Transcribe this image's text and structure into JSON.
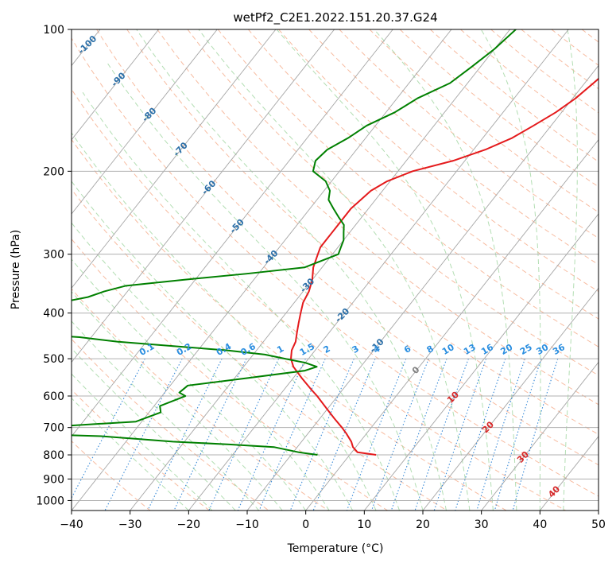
{
  "chart_data": {
    "type": "line",
    "subtype": "skew-t log-p diagram",
    "title": "wetPf2_C2E1.2022.151.20.37.G24",
    "xlabel": "Temperature (°C)",
    "ylabel": "Pressure (hPa)",
    "xlim": [
      -40,
      50
    ],
    "ylim": [
      1050,
      100
    ],
    "y_scale": "log",
    "grid": true,
    "x_ticks": [
      -40,
      -30,
      -20,
      -10,
      0,
      10,
      20,
      30,
      40,
      50
    ],
    "y_ticks": [
      100,
      200,
      300,
      400,
      500,
      600,
      700,
      800,
      900,
      1000
    ],
    "background_lines": {
      "isotherms_color": "#a6a6a6",
      "dry_adiabats_color": "#f4a582",
      "moist_adiabats_color": "#a6d8a6",
      "mixing_ratio_color": "#1f77b4",
      "dry_adiabat_labels": [
        "-100",
        "-90",
        "-80",
        "-70",
        "-60",
        "-50",
        "-40",
        "-30",
        "-20",
        "-10",
        "0",
        "10",
        "20",
        "30",
        "40"
      ],
      "mixing_ratio_labels": [
        "0.1",
        "0.2",
        "0.4",
        "0.6",
        "1",
        "1.5",
        "2",
        "3",
        "4",
        "6",
        "8",
        "10",
        "13",
        "16",
        "20",
        "25",
        "30",
        "36"
      ]
    },
    "series": [
      {
        "color": "#e41a1c",
        "points": [
          [
            -1.5,
            100
          ],
          [
            -5.5,
            110
          ],
          [
            -7.5,
            120
          ],
          [
            -8.5,
            130
          ],
          [
            -9.5,
            140
          ],
          [
            -11,
            150
          ],
          [
            -13,
            160
          ],
          [
            -15,
            170
          ],
          [
            -18,
            180
          ],
          [
            -22,
            190
          ],
          [
            -27.5,
            200
          ],
          [
            -30.5,
            210
          ],
          [
            -32,
            220
          ],
          [
            -32.5,
            230
          ],
          [
            -33,
            240
          ],
          [
            -33,
            250
          ],
          [
            -33,
            260
          ],
          [
            -33,
            270
          ],
          [
            -33,
            280
          ],
          [
            -33,
            290
          ],
          [
            -32.5,
            300
          ],
          [
            -31.5,
            320
          ],
          [
            -30,
            340
          ],
          [
            -29,
            360
          ],
          [
            -28.5,
            380
          ],
          [
            -27.5,
            400
          ],
          [
            -26.5,
            420
          ],
          [
            -25.5,
            440
          ],
          [
            -24.5,
            460
          ],
          [
            -24,
            480
          ],
          [
            -23,
            500
          ],
          [
            -21.5,
            520
          ],
          [
            -18.5,
            550
          ],
          [
            -15.5,
            580
          ],
          [
            -13.5,
            600
          ],
          [
            -10,
            640
          ],
          [
            -7.5,
            670
          ],
          [
            -5,
            700
          ],
          [
            -3.5,
            720
          ],
          [
            -1.5,
            750
          ],
          [
            -0.5,
            770
          ],
          [
            1,
            790
          ],
          [
            4.5,
            800
          ]
        ]
      },
      {
        "color": "#008000",
        "points": [
          [
            -29,
            100
          ],
          [
            -30,
            110
          ],
          [
            -31.5,
            120
          ],
          [
            -33,
            130
          ],
          [
            -36.5,
            140
          ],
          [
            -38.5,
            150
          ],
          [
            -41.5,
            160
          ],
          [
            -43,
            170
          ],
          [
            -45,
            180
          ],
          [
            -45.5,
            190
          ],
          [
            -44.5,
            200
          ],
          [
            -41,
            210
          ],
          [
            -39,
            220
          ],
          [
            -38,
            230
          ],
          [
            -36,
            240
          ],
          [
            -34,
            250
          ],
          [
            -32,
            260
          ],
          [
            -31,
            270
          ],
          [
            -30,
            280
          ],
          [
            -29.5,
            290
          ],
          [
            -29,
            300
          ],
          [
            -33,
            320
          ],
          [
            -42,
            330
          ],
          [
            -52,
            340
          ],
          [
            -61,
            350
          ],
          [
            -64,
            360
          ],
          [
            -66,
            370
          ],
          [
            -70,
            380
          ],
          [
            -75,
            440
          ],
          [
            -62,
            450
          ],
          [
            -55,
            460
          ],
          [
            -45,
            470
          ],
          [
            -35,
            480
          ],
          [
            -28,
            490
          ],
          [
            -24,
            500
          ],
          [
            -20,
            510
          ],
          [
            -17.5,
            520
          ],
          [
            -19,
            530
          ],
          [
            -28,
            550
          ],
          [
            -37,
            570
          ],
          [
            -37.5,
            590
          ],
          [
            -36,
            600
          ],
          [
            -39,
            630
          ],
          [
            -38,
            650
          ],
          [
            -41,
            680
          ],
          [
            -57,
            700
          ],
          [
            -67,
            710
          ],
          [
            -62,
            720
          ],
          [
            -45,
            730
          ],
          [
            -32,
            750
          ],
          [
            -22,
            760
          ],
          [
            -14,
            770
          ],
          [
            -9,
            790
          ],
          [
            -5.5,
            800
          ]
        ]
      }
    ]
  }
}
